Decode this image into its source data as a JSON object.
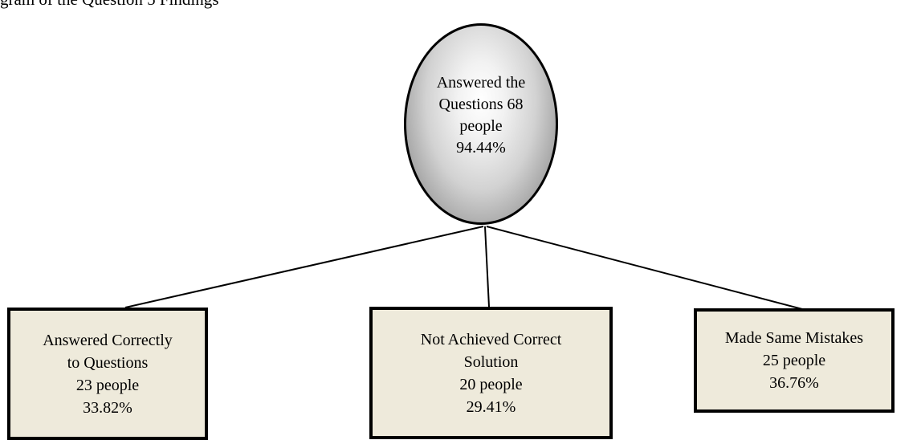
{
  "caption": "gram of the Question 5 Findings",
  "root": {
    "line1": "Answered the",
    "line2": "Questions 68",
    "line3": "people",
    "percent": "94.44%"
  },
  "children": [
    {
      "line1": "Answered Correctly",
      "line2": "to Questions",
      "count": "23 people",
      "percent": "33.82%"
    },
    {
      "line1": "Not Achieved Correct",
      "line2": "Solution",
      "count": "20 people",
      "percent": "29.41%"
    },
    {
      "line1": "Made Same Mistakes",
      "count": "25 people",
      "percent": "36.76%"
    }
  ],
  "colors": {
    "box_fill": "#eeeadb",
    "root_gradient_center": "#ffffff",
    "root_gradient_edge": "#7a7a7a",
    "line": "#000000"
  }
}
